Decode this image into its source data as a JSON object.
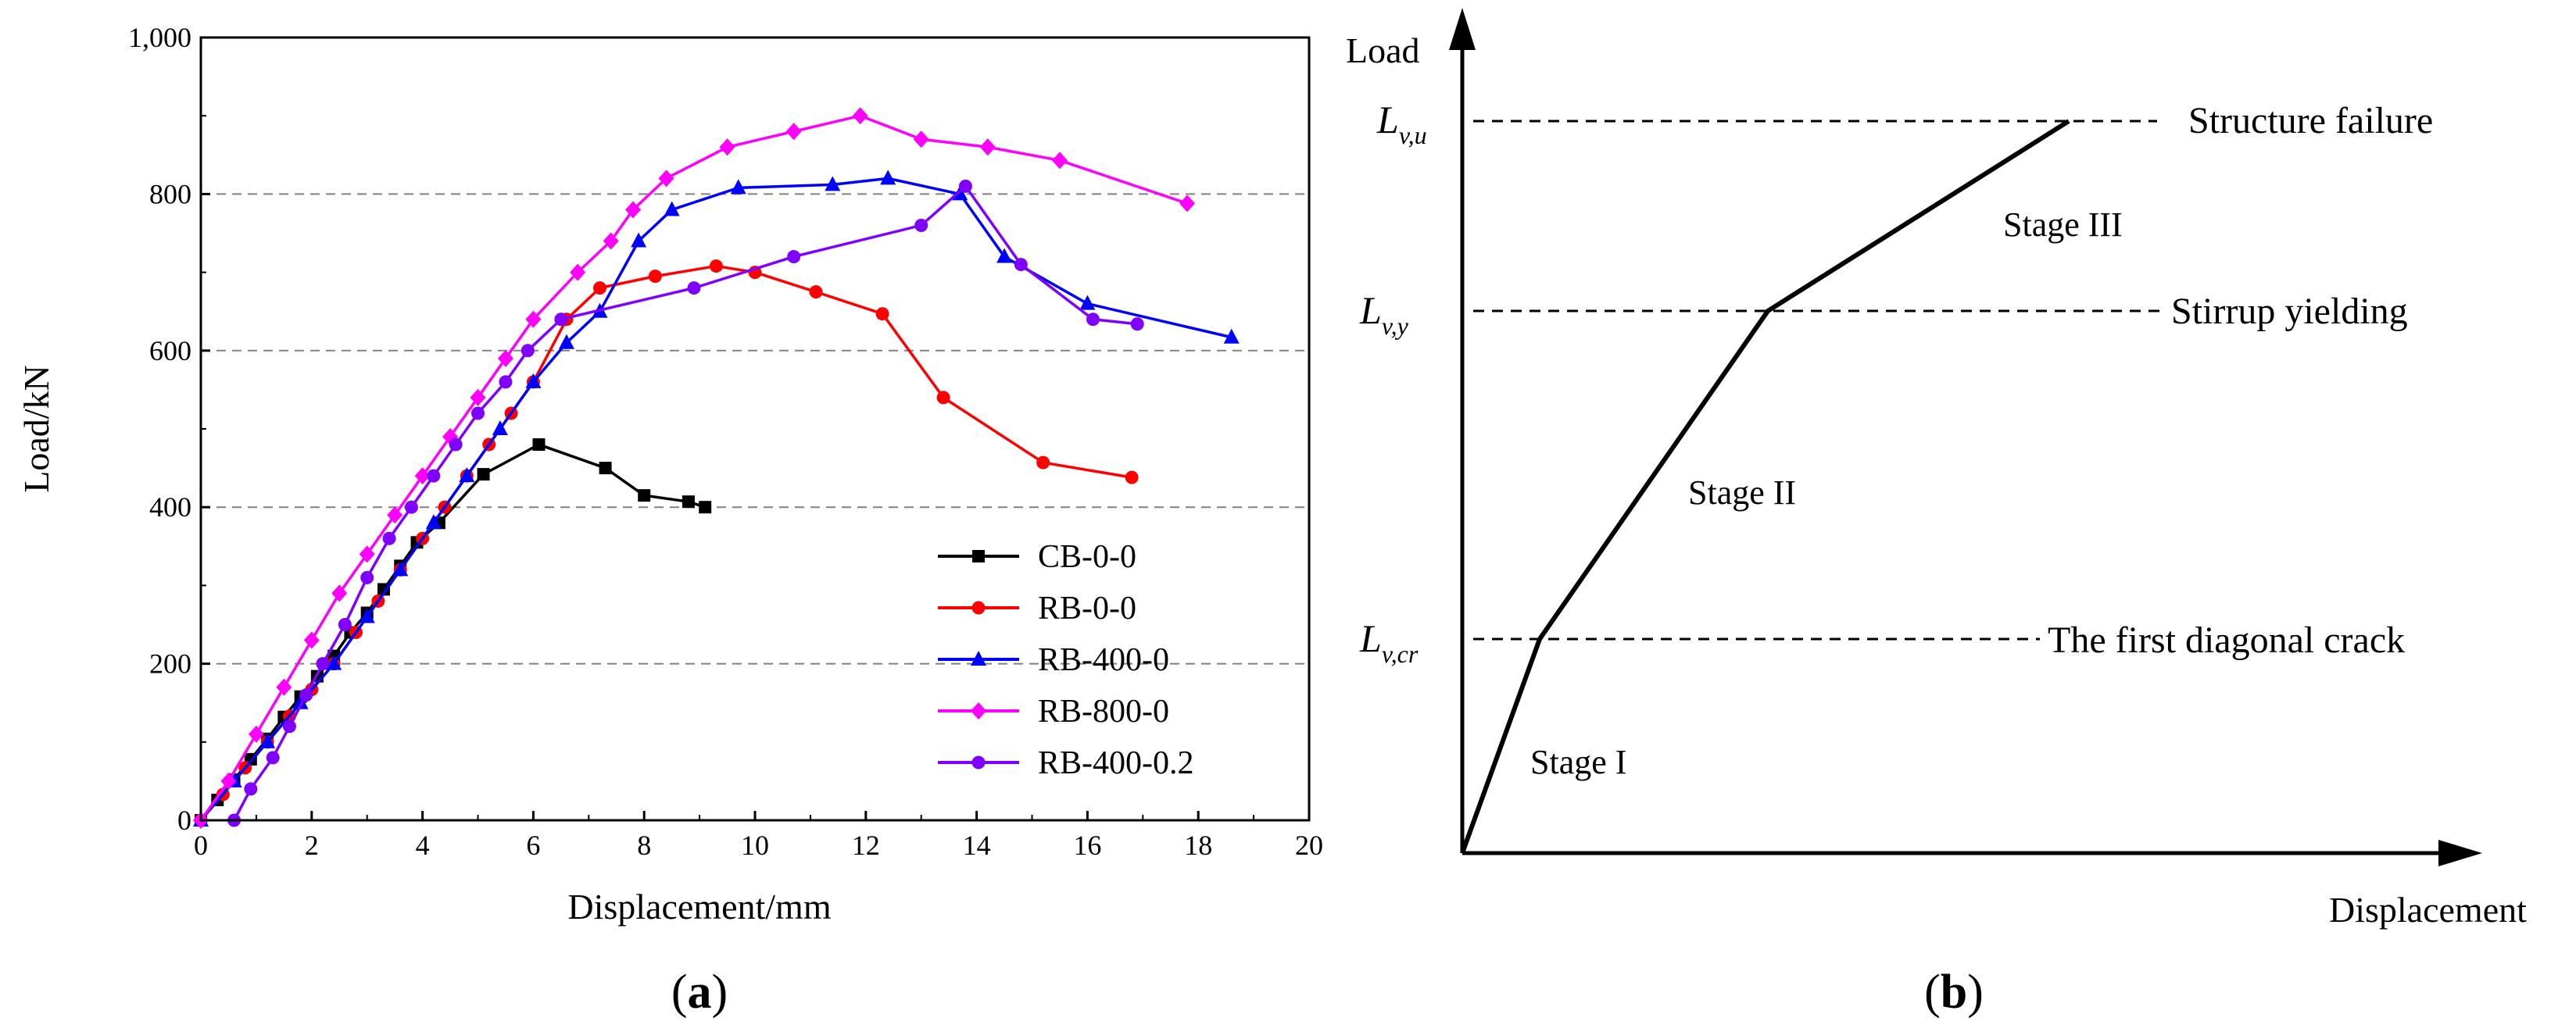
{
  "chart_data": [
    {
      "panel": "(a)",
      "panel_letter": "a",
      "type": "line",
      "title": "",
      "xlabel": "Displacement/mm",
      "ylabel": "Load/kN",
      "xlim": [
        0,
        20
      ],
      "ylim": [
        0,
        1000
      ],
      "xticks": [
        0,
        2,
        4,
        6,
        8,
        10,
        12,
        14,
        16,
        18,
        20
      ],
      "xtick_labels": [
        "0",
        "2",
        "4",
        "6",
        "8",
        "10",
        "12",
        "14",
        "16",
        "18",
        "20"
      ],
      "yticks": [
        0,
        200,
        400,
        600,
        800,
        1000
      ],
      "ytick_labels": [
        "0",
        "200",
        "400",
        "600",
        "800",
        "1,000"
      ],
      "grid": "horizontal dashed",
      "legend_position": "bottom-right",
      "series": [
        {
          "name": "CB-0-0",
          "color": "#000000",
          "marker": "square",
          "x": [
            0,
            0.3,
            0.6,
            0.9,
            1.2,
            1.5,
            1.8,
            2.1,
            2.4,
            2.7,
            3.0,
            3.3,
            3.6,
            3.9,
            4.3,
            5.1,
            6.1,
            7.3,
            8.0,
            8.8,
            9.1
          ],
          "y": [
            0,
            26,
            52,
            78,
            104,
            132,
            158,
            184,
            210,
            240,
            265,
            295,
            325,
            355,
            380,
            442,
            480,
            450,
            415,
            407,
            400
          ]
        },
        {
          "name": "RB-0-0",
          "color": "#ff0000",
          "marker": "circle",
          "x": [
            0,
            0.4,
            0.8,
            1.2,
            1.6,
            2.0,
            2.4,
            2.8,
            3.2,
            3.6,
            4.0,
            4.4,
            4.8,
            5.2,
            5.6,
            6.0,
            6.6,
            7.2,
            8.2,
            9.3,
            10.0,
            11.1,
            12.3,
            13.4,
            15.2,
            16.8
          ],
          "y": [
            0,
            33,
            67,
            100,
            133,
            167,
            200,
            240,
            280,
            320,
            360,
            400,
            440,
            480,
            520,
            560,
            640,
            680,
            695,
            708,
            700,
            675,
            647,
            540,
            457,
            438
          ]
        },
        {
          "name": "RB-400-0",
          "color": "#0000ff",
          "marker": "triangle",
          "x": [
            0,
            0.6,
            1.2,
            1.8,
            2.4,
            3.0,
            3.6,
            4.2,
            4.8,
            5.4,
            6.0,
            6.6,
            7.2,
            7.9,
            8.5,
            9.7,
            11.4,
            12.4,
            13.7,
            14.5,
            16.0,
            18.6
          ],
          "y": [
            0,
            50,
            100,
            150,
            200,
            260,
            320,
            380,
            440,
            500,
            560,
            610,
            650,
            740,
            780,
            808,
            812,
            820,
            800,
            720,
            660,
            617
          ]
        },
        {
          "name": "RB-800-0",
          "color": "#ff00ff",
          "marker": "diamond",
          "x": [
            0,
            0.5,
            1.0,
            1.5,
            2.0,
            2.5,
            3.0,
            3.5,
            4.0,
            4.5,
            5.0,
            5.5,
            6.0,
            6.8,
            7.4,
            7.8,
            8.4,
            9.5,
            10.7,
            11.9,
            13.0,
            14.2,
            15.5,
            17.8
          ],
          "y": [
            0,
            50,
            110,
            170,
            230,
            290,
            340,
            390,
            440,
            490,
            540,
            590,
            640,
            700,
            740,
            780,
            820,
            860,
            880,
            900,
            870,
            860,
            843,
            788
          ]
        },
        {
          "name": "RB-400-0.2",
          "color": "#7f00ff",
          "marker": "circle",
          "x": [
            0.6,
            0.9,
            1.3,
            1.6,
            1.9,
            2.2,
            2.6,
            3.0,
            3.4,
            3.8,
            4.2,
            4.6,
            5.0,
            5.5,
            5.9,
            6.5,
            8.9,
            10.7,
            13.0,
            13.8,
            14.8,
            16.1,
            16.9
          ],
          "y": [
            0,
            40,
            80,
            120,
            160,
            200,
            250,
            310,
            360,
            400,
            440,
            480,
            520,
            560,
            600,
            640,
            680,
            720,
            760,
            810,
            710,
            640,
            634
          ]
        }
      ]
    },
    {
      "panel": "(b)",
      "panel_letter": "b",
      "type": "line",
      "title": "",
      "xlabel": "Displacement",
      "ylabel": "Load",
      "description_points": [
        "origin",
        "L_v,cr",
        "L_v,y",
        "L_v,u"
      ],
      "levels": [
        {
          "symbol": "L",
          "subscript": "v,cr",
          "event": "The first diagonal crack"
        },
        {
          "symbol": "L",
          "subscript": "v,y",
          "event": "Stirrup yielding"
        },
        {
          "symbol": "L",
          "subscript": "v,u",
          "event": "Structure failure"
        }
      ],
      "stages": [
        "Stage I",
        "Stage II",
        "Stage III"
      ]
    }
  ]
}
